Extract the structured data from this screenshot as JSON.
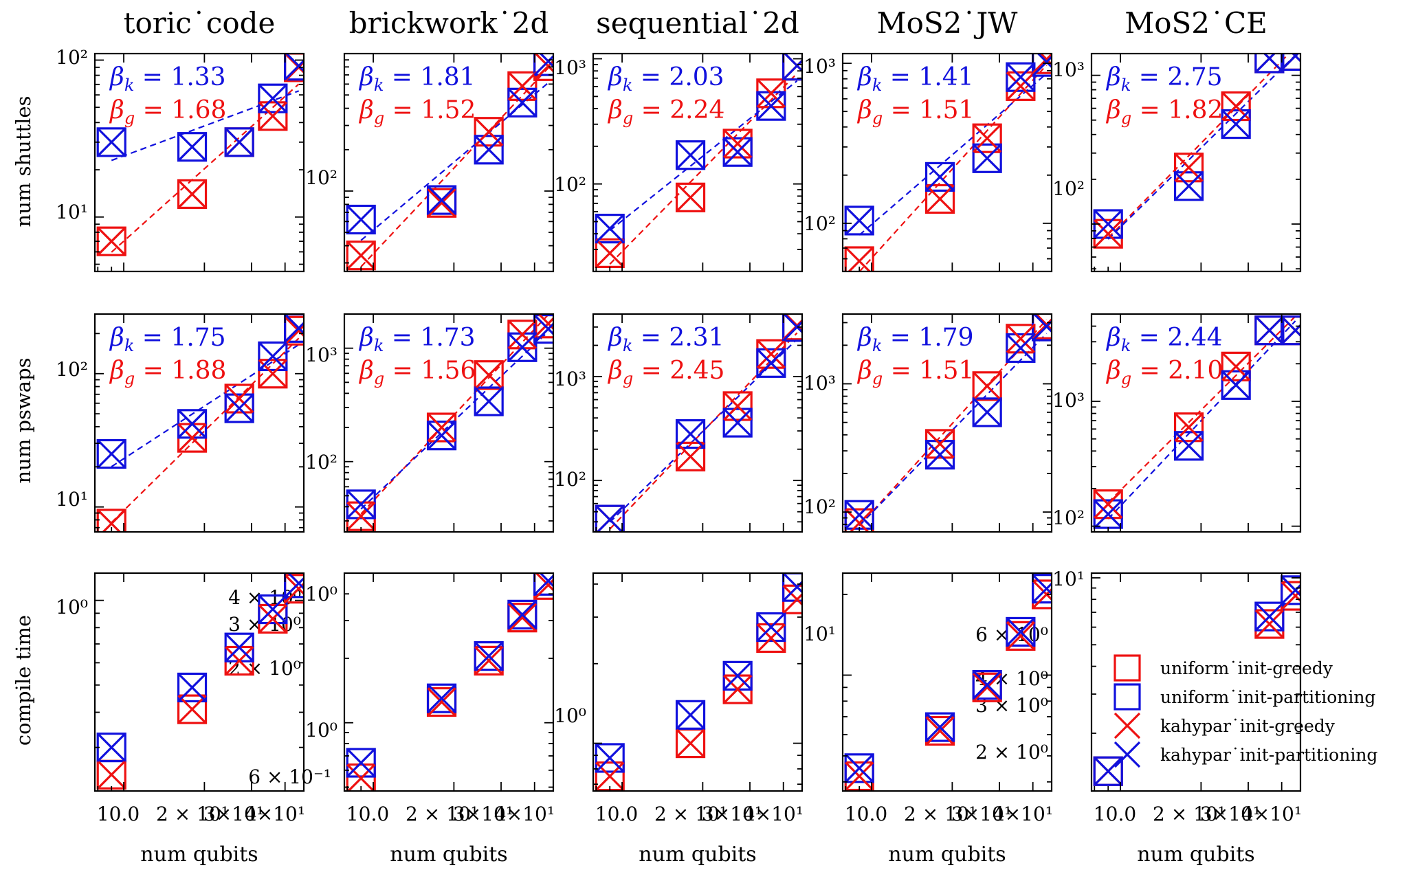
{
  "figure": {
    "colors": {
      "greedy": "#ee1111",
      "partitioning": "#1111dd"
    },
    "columns": [
      "toric˙code",
      "brickwork˙2d",
      "sequential˙2d",
      "MoS2˙JW",
      "MoS2˙CE"
    ],
    "rows": [
      "num shuttles",
      "num pswaps",
      "compile time"
    ],
    "xlabel": "num qubits",
    "legend": [
      {
        "label": "uniform˙init-greedy",
        "marker": "square",
        "color": "#ee1111"
      },
      {
        "label": "uniform˙init-partitioning",
        "marker": "square",
        "color": "#1111dd"
      },
      {
        "label": "kahypar˙init-greedy",
        "marker": "cross",
        "color": "#ee1111"
      },
      {
        "label": "kahypar˙init-partitioning",
        "marker": "cross",
        "color": "#1111dd"
      }
    ]
  },
  "chart_data": [
    {
      "type": "scatter",
      "row": 0,
      "col": 0,
      "yscale": "log",
      "xscale": "log",
      "x": [
        9,
        18,
        27,
        36,
        45
      ],
      "series": [
        {
          "name": "uniform˙init-greedy",
          "values": [
            7,
            14,
            30,
            44,
            90
          ]
        },
        {
          "name": "uniform˙init-partitioning",
          "values": [
            30,
            28,
            30,
            57,
            92
          ]
        },
        {
          "name": "kahypar˙init-greedy",
          "values": [
            7,
            14,
            30,
            44,
            90
          ]
        },
        {
          "name": "kahypar˙init-partitioning",
          "values": [
            30,
            28,
            30,
            57,
            92
          ]
        }
      ],
      "fits": {
        "beta_k": "1.33",
        "beta_g": "1.68"
      }
    },
    {
      "type": "scatter",
      "row": 0,
      "col": 1,
      "yscale": "log",
      "xscale": "log",
      "x": [
        9,
        18,
        27,
        36,
        45
      ],
      "series": [
        {
          "name": "uniform˙init-greedy",
          "values": [
            34,
            82,
            270,
            580,
            810
          ]
        },
        {
          "name": "uniform˙init-partitioning",
          "values": [
            62,
            86,
            200,
            440,
            880
          ]
        },
        {
          "name": "kahypar˙init-greedy",
          "values": [
            34,
            82,
            270,
            580,
            810
          ]
        },
        {
          "name": "kahypar˙init-partitioning",
          "values": [
            62,
            86,
            200,
            440,
            880
          ]
        }
      ],
      "fits": {
        "beta_k": "1.81",
        "beta_g": "1.52"
      }
    },
    {
      "type": "scatter",
      "row": 0,
      "col": 2,
      "yscale": "log",
      "xscale": "log",
      "x": [
        9,
        18,
        27,
        36,
        45
      ],
      "series": [
        {
          "name": "uniform˙init-greedy",
          "values": [
            28,
            78,
            210,
            530,
            880
          ]
        },
        {
          "name": "uniform˙init-partitioning",
          "values": [
            44,
            170,
            180,
            420,
            880
          ]
        },
        {
          "name": "kahypar˙init-greedy",
          "values": [
            28,
            78,
            210,
            530,
            880
          ]
        },
        {
          "name": "kahypar˙init-partitioning",
          "values": [
            44,
            170,
            180,
            420,
            880
          ]
        }
      ],
      "fits": {
        "beta_k": "2.03",
        "beta_g": "2.24"
      }
    },
    {
      "type": "scatter",
      "row": 0,
      "col": 3,
      "yscale": "log",
      "xscale": "log",
      "x": [
        9,
        18,
        27,
        36,
        45
      ],
      "series": [
        {
          "name": "uniform˙init-greedy",
          "values": [
            58,
            142,
            340,
            720,
            1060
          ]
        },
        {
          "name": "uniform˙init-partitioning",
          "values": [
            104,
            195,
            255,
            820,
            1020
          ]
        },
        {
          "name": "kahypar˙init-greedy",
          "values": [
            58,
            142,
            340,
            720,
            1060
          ]
        },
        {
          "name": "kahypar˙init-partitioning",
          "values": [
            104,
            195,
            255,
            820,
            1020
          ]
        }
      ],
      "fits": {
        "beta_k": "1.41",
        "beta_g": "1.51"
      }
    },
    {
      "type": "scatter",
      "row": 0,
      "col": 4,
      "yscale": "log",
      "xscale": "log",
      "x": [
        9,
        18,
        27,
        36,
        45
      ],
      "series": [
        {
          "name": "uniform˙init-greedy",
          "values": [
            86,
            240,
            620,
            1300,
            1350
          ]
        },
        {
          "name": "uniform˙init-partitioning",
          "values": [
            100,
            180,
            470,
            1300,
            1350
          ]
        },
        {
          "name": "kahypar˙init-greedy",
          "values": [
            86,
            240,
            620,
            1300,
            1350
          ]
        },
        {
          "name": "kahypar˙init-partitioning",
          "values": [
            100,
            180,
            470,
            1300,
            1350
          ]
        }
      ],
      "fits": {
        "beta_k": "2.75",
        "beta_g": "1.82"
      }
    },
    {
      "type": "scatter",
      "row": 1,
      "col": 0,
      "yscale": "log",
      "xscale": "log",
      "x": [
        9,
        18,
        27,
        36,
        45
      ],
      "series": [
        {
          "name": "uniform˙init-greedy",
          "values": [
            7.5,
            33,
            65,
            100,
            210
          ]
        },
        {
          "name": "uniform˙init-partitioning",
          "values": [
            25,
            42,
            55,
            135,
            220
          ]
        },
        {
          "name": "kahypar˙init-greedy",
          "values": [
            7.5,
            33,
            65,
            100,
            210
          ]
        },
        {
          "name": "kahypar˙init-partitioning",
          "values": [
            25,
            42,
            55,
            135,
            220
          ]
        }
      ],
      "fits": {
        "beta_k": "1.75",
        "beta_g": "1.88"
      }
    },
    {
      "type": "scatter",
      "row": 1,
      "col": 1,
      "yscale": "log",
      "xscale": "log",
      "x": [
        9,
        18,
        27,
        36,
        45
      ],
      "series": [
        {
          "name": "uniform˙init-greedy",
          "values": [
            33,
            200,
            580,
            1320,
            1650
          ]
        },
        {
          "name": "uniform˙init-partitioning",
          "values": [
            42,
            170,
            340,
            1020,
            1480
          ]
        },
        {
          "name": "kahypar˙init-greedy",
          "values": [
            33,
            200,
            580,
            1320,
            1650
          ]
        },
        {
          "name": "kahypar˙init-partitioning",
          "values": [
            42,
            170,
            340,
            1020,
            1480
          ]
        }
      ],
      "fits": {
        "beta_k": "1.73",
        "beta_g": "1.56"
      }
    },
    {
      "type": "scatter",
      "row": 1,
      "col": 2,
      "yscale": "log",
      "xscale": "log",
      "x": [
        9,
        18,
        27,
        36,
        45
      ],
      "series": [
        {
          "name": "uniform˙init-greedy",
          "values": [
            42,
            170,
            520,
            1650,
            3100
          ]
        },
        {
          "name": "uniform˙init-partitioning",
          "values": [
            42,
            280,
            360,
            1350,
            3000
          ]
        },
        {
          "name": "kahypar˙init-greedy",
          "values": [
            42,
            170,
            520,
            1650,
            3100
          ]
        },
        {
          "name": "kahypar˙init-partitioning",
          "values": [
            42,
            280,
            360,
            1350,
            3000
          ]
        }
      ],
      "fits": {
        "beta_k": "2.31",
        "beta_g": "2.45"
      }
    },
    {
      "type": "scatter",
      "row": 1,
      "col": 3,
      "yscale": "log",
      "xscale": "log",
      "x": [
        9,
        18,
        27,
        36,
        45
      ],
      "series": [
        {
          "name": "uniform˙init-greedy",
          "values": [
            82,
            340,
            960,
            2250,
            2900
          ]
        },
        {
          "name": "uniform˙init-partitioning",
          "values": [
            95,
            280,
            600,
            1900,
            2800
          ]
        },
        {
          "name": "kahypar˙init-greedy",
          "values": [
            82,
            340,
            960,
            2250,
            2900
          ]
        },
        {
          "name": "kahypar˙init-partitioning",
          "values": [
            95,
            280,
            600,
            1900,
            2800
          ]
        }
      ],
      "fits": {
        "beta_k": "1.79",
        "beta_g": "1.51"
      }
    },
    {
      "type": "scatter",
      "row": 1,
      "col": 4,
      "yscale": "log",
      "xscale": "log",
      "x": [
        9,
        18,
        27,
        36,
        45
      ],
      "series": [
        {
          "name": "uniform˙init-greedy",
          "values": [
            150,
            620,
            1900,
            3700,
            3700
          ]
        },
        {
          "name": "uniform˙init-partitioning",
          "values": [
            125,
            440,
            1350,
            3700,
            3700
          ]
        },
        {
          "name": "kahypar˙init-greedy",
          "values": [
            150,
            620,
            1900,
            3700,
            3700
          ]
        },
        {
          "name": "kahypar˙init-partitioning",
          "values": [
            125,
            440,
            1350,
            3700,
            3700
          ]
        }
      ],
      "fits": {
        "beta_k": "2.44",
        "beta_g": "2.10"
      }
    },
    {
      "type": "scatter",
      "row": 2,
      "col": 0,
      "yscale": "log",
      "xscale": "log",
      "x": [
        9,
        18,
        27,
        36,
        45
      ],
      "series": [
        {
          "name": "uniform˙init-greedy",
          "values": [
            0.24,
            0.41,
            0.61,
            0.86,
            1.1
          ]
        },
        {
          "name": "uniform˙init-partitioning",
          "values": [
            0.3,
            0.49,
            0.68,
            0.93,
            1.15
          ]
        },
        {
          "name": "kahypar˙init-greedy",
          "values": [
            0.24,
            0.41,
            0.61,
            0.86,
            1.1
          ]
        },
        {
          "name": "kahypar˙init-partitioning",
          "values": [
            0.3,
            0.49,
            0.68,
            0.93,
            1.15
          ]
        }
      ],
      "fits": null
    },
    {
      "type": "scatter",
      "row": 2,
      "col": 1,
      "yscale": "log",
      "xscale": "log",
      "x": [
        9,
        18,
        27,
        36,
        45
      ],
      "series": [
        {
          "name": "uniform˙init-greedy",
          "values": [
            0.55,
            1.25,
            1.95,
            3.1,
            4.4
          ]
        },
        {
          "name": "uniform˙init-partitioning",
          "values": [
            0.65,
            1.3,
            2.05,
            3.2,
            4.6
          ]
        },
        {
          "name": "kahypar˙init-greedy",
          "values": [
            0.55,
            1.25,
            1.95,
            3.1,
            4.4
          ]
        },
        {
          "name": "kahypar˙init-partitioning",
          "values": [
            0.65,
            1.3,
            2.05,
            3.2,
            4.6
          ]
        }
      ],
      "fits": null
    },
    {
      "type": "scatter",
      "row": 2,
      "col": 2,
      "yscale": "log",
      "xscale": "log",
      "x": [
        9,
        18,
        27,
        36,
        45
      ],
      "series": [
        {
          "name": "uniform˙init-greedy",
          "values": [
            0.75,
            1.0,
            1.6,
            2.5,
            3.5
          ]
        },
        {
          "name": "uniform˙init-partitioning",
          "values": [
            0.88,
            1.28,
            1.8,
            2.75,
            3.9
          ]
        },
        {
          "name": "kahypar˙init-greedy",
          "values": [
            0.75,
            1.0,
            1.6,
            2.5,
            3.5
          ]
        },
        {
          "name": "kahypar˙init-partitioning",
          "values": [
            0.88,
            1.28,
            1.8,
            2.75,
            3.9
          ]
        }
      ],
      "fits": null
    },
    {
      "type": "scatter",
      "row": 2,
      "col": 3,
      "yscale": "log",
      "xscale": "log",
      "x": [
        9,
        18,
        27,
        36,
        45
      ],
      "series": [
        {
          "name": "uniform˙init-greedy",
          "values": [
            4.2,
            6.2,
            9.0,
            14.0,
            20.0
          ]
        },
        {
          "name": "uniform˙init-partitioning",
          "values": [
            4.5,
            6.4,
            9.2,
            14.5,
            21.0
          ]
        },
        {
          "name": "kahypar˙init-greedy",
          "values": [
            4.2,
            6.2,
            9.0,
            14.0,
            20.0
          ]
        },
        {
          "name": "kahypar˙init-partitioning",
          "values": [
            4.5,
            6.4,
            9.2,
            14.5,
            21.0
          ]
        }
      ],
      "fits": null
    },
    {
      "type": "scatter",
      "row": 2,
      "col": 4,
      "yscale": "log",
      "xscale": "log",
      "x": [
        9,
        36,
        45
      ],
      "series": [
        {
          "name": "uniform˙init-greedy",
          "values": [
            1.35,
            6.2,
            8.3
          ]
        },
        {
          "name": "uniform˙init-partitioning",
          "values": [
            1.35,
            6.7,
            8.8
          ]
        },
        {
          "name": "kahypar˙init-greedy",
          "values": [
            1.35,
            6.2,
            8.3
          ]
        },
        {
          "name": "kahypar˙init-partitioning",
          "values": [
            1.35,
            6.7,
            8.8
          ]
        }
      ],
      "fits": null
    }
  ],
  "ticks": {
    "r0c0": [
      "10²",
      "10¹"
    ],
    "r0c1": [
      "10²"
    ],
    "r0c2": [
      "10³",
      "10²"
    ],
    "r0c3": [
      "10³",
      "10²"
    ],
    "r0c4": [
      "10³",
      "10²"
    ],
    "r1c0": [
      "10²",
      "10¹"
    ],
    "r1c1": [
      "10³",
      "10²"
    ],
    "r1c2": [
      "10³",
      "10²"
    ],
    "r1c3": [
      "10³",
      "10²"
    ],
    "r1c4": [
      "10³",
      "10²"
    ],
    "r2c0": [
      "10⁰",
      "4 × 10⁰",
      "3 × 10⁰",
      "2 × 10⁰"
    ],
    "r2c1": [
      "10⁰",
      "10⁰",
      "6 × 10⁻¹"
    ],
    "r2c2": [
      "10⁰"
    ],
    "r2c3": [
      "10¹"
    ],
    "r2c4": [
      "10¹",
      "6 × 10⁰",
      "4 × 10⁰",
      "3 × 10⁰",
      "2 × 10⁰"
    ],
    "x_10": "10.0",
    "x_2": "2 × 10¹",
    "x_3": "3×10¹",
    "x_4": "4×10¹"
  }
}
